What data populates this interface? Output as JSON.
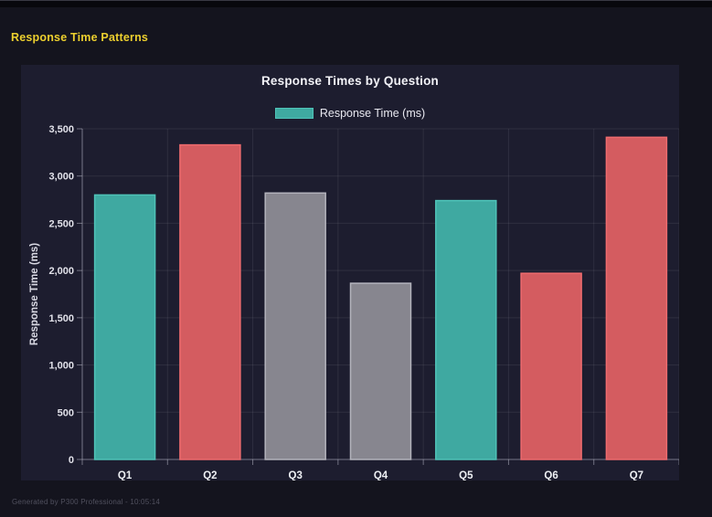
{
  "window": {
    "heading": "Response Time Patterns",
    "footer": "Generated by P300 Professional - 10:05:14"
  },
  "colors": {
    "page_bg": "#14141e",
    "panel_bg": "#1d1d2f",
    "heading": "#eccf2e",
    "teal_fill": "#3fa9a1",
    "teal_border": "#4fc3b8",
    "red_fill": "#d45c60",
    "red_border": "#ee6b6e",
    "gray_fill": "#87868f",
    "gray_border": "#b3b3bc",
    "grid_line": "rgba(255,255,255,0.08)",
    "axis_line": "rgba(170,170,185,0.6)",
    "tick_text": "#e2e2ea",
    "category_text": "#eef0f4"
  },
  "chart_data": {
    "type": "bar",
    "title": "Response Times by Question",
    "legend_label": "Response Time (ms)",
    "legend_position": "top",
    "ylabel": "Response Time (ms)",
    "xlabel": "",
    "categories": [
      "Q1",
      "Q2",
      "Q3",
      "Q4",
      "Q5",
      "Q6",
      "Q7"
    ],
    "values": [
      2800,
      3330,
      2820,
      1865,
      2740,
      1970,
      3410
    ],
    "bar_colors": [
      "teal",
      "red",
      "gray",
      "gray",
      "teal",
      "red",
      "red"
    ],
    "ylim": [
      0,
      3500
    ],
    "ytick_step": 500,
    "grid": true
  }
}
